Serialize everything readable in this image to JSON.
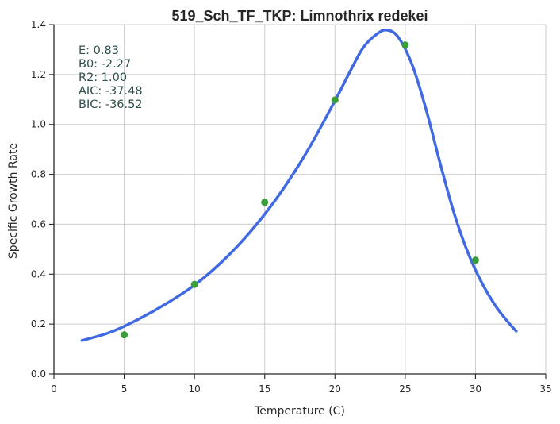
{
  "chart_data": {
    "type": "line",
    "title": "519_Sch_TF_TKP: Limnothrix redekei",
    "xlabel": "Temperature (C)",
    "ylabel": "Specific Growth Rate",
    "xlim": [
      0,
      35
    ],
    "ylim": [
      0,
      1.4
    ],
    "xticks": [
      0,
      5,
      10,
      15,
      20,
      25,
      30,
      35
    ],
    "xtick_labels": [
      "0",
      "5",
      "10",
      "15",
      "20",
      "25",
      "30",
      "35"
    ],
    "yticks": [
      0,
      0.2,
      0.4,
      0.6,
      0.8,
      1.0,
      1.2,
      1.4
    ],
    "ytick_labels": [
      "0.0",
      "0.2",
      "0.4",
      "0.6",
      "0.8",
      "1.0",
      "1.2",
      "1.4"
    ],
    "grid": true,
    "annotations": [
      "E:  0.83",
      "B0:  -2.27",
      "R2:  1.00",
      "AIC: -37.48",
      "BIC: -36.52"
    ],
    "series": [
      {
        "kind": "scatter",
        "color": "#3a9d3a",
        "x": [
          5,
          10,
          15,
          20,
          25,
          30
        ],
        "y": [
          0.157,
          0.359,
          0.688,
          1.098,
          1.318,
          0.456
        ]
      },
      {
        "kind": "line",
        "color": "#4169e1",
        "x": [
          2,
          4,
          6,
          8,
          10,
          12,
          14,
          16,
          18,
          20,
          21,
          22,
          23,
          23.7,
          24.5,
          25.5,
          26.5,
          27.5,
          28.5,
          29.5,
          30.5,
          31.5,
          32.5,
          32.9
        ],
        "y": [
          0.134,
          0.167,
          0.219,
          0.282,
          0.356,
          0.452,
          0.571,
          0.716,
          0.89,
          1.095,
          1.204,
          1.307,
          1.363,
          1.378,
          1.35,
          1.238,
          1.057,
          0.841,
          0.64,
          0.481,
          0.36,
          0.267,
          0.196,
          0.172
        ]
      }
    ]
  }
}
